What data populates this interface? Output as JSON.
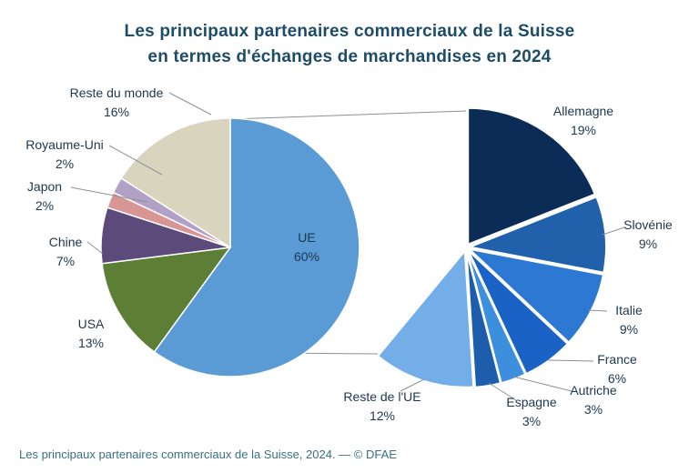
{
  "title_lines": [
    "Les principaux partenaires commerciaux de la Suisse",
    "en termes d'échanges de marchandises en 2024"
  ],
  "caption": "Les principaux partenaires commerciaux de la Suisse, 2024. — © DFAE",
  "chart_data": {
    "type": "pie",
    "subtype": "pie-of-pie",
    "title": "Les principaux partenaires commerciaux de la Suisse en termes d'échanges de marchandises en 2024",
    "value_suffix": "%",
    "main_pie": {
      "slices": [
        {
          "name": "UE",
          "value": 60,
          "color": "#5b9bd5"
        },
        {
          "name": "USA",
          "value": 13,
          "color": "#5d7e35"
        },
        {
          "name": "Chine",
          "value": 7,
          "color": "#5b4a7a"
        },
        {
          "name": "Japon",
          "value": 2,
          "color": "#d79694"
        },
        {
          "name": "Royaume-Uni",
          "value": 2,
          "color": "#b2a1c7"
        },
        {
          "name": "Reste du monde",
          "value": 16,
          "color": "#d9d4be"
        }
      ]
    },
    "secondary_pie": {
      "parent": "UE",
      "slices": [
        {
          "name": "Allemagne",
          "value": 19,
          "color": "#0b2c56"
        },
        {
          "name": "Slovénie",
          "value": 9,
          "color": "#2161ac"
        },
        {
          "name": "Italie",
          "value": 9,
          "color": "#2d78d2"
        },
        {
          "name": "France",
          "value": 6,
          "color": "#1a62c6"
        },
        {
          "name": "Autriche",
          "value": 3,
          "color": "#3e8ede"
        },
        {
          "name": "Espagne",
          "value": 3,
          "color": "#1d5dab"
        },
        {
          "name": "Reste de l'UE",
          "value": 12,
          "color": "#73aee8"
        }
      ]
    }
  },
  "colors": {
    "title": "#1d4c68",
    "caption": "#37707f",
    "label": "#1c3750",
    "leader_line": "#8a9199",
    "slice_stroke": "#ffffff",
    "background": "#ffffff"
  }
}
